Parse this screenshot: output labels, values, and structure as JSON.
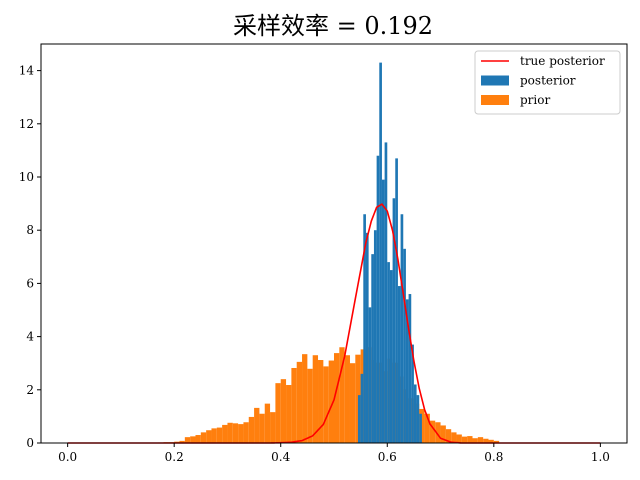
{
  "chart_data": {
    "type": "bar",
    "title": "采样效率 = 0.192",
    "xlabel": "",
    "ylabel": "",
    "xlim": [
      -0.05,
      1.05
    ],
    "ylim": [
      0,
      15
    ],
    "xticks": [
      "0.0",
      "0.2",
      "0.4",
      "0.6",
      "0.8",
      "1.0"
    ],
    "yticks": [
      "0",
      "2",
      "4",
      "6",
      "8",
      "10",
      "12",
      "14"
    ],
    "grid": false,
    "legend_position": "top-right",
    "legend": [
      "true posterior",
      "posterior",
      "prior"
    ],
    "colors": {
      "true_posterior": "#ff0000",
      "posterior": "#1f77b4",
      "prior": "#ff7f0e"
    },
    "series": [
      {
        "name": "prior",
        "kind": "histogram",
        "bin_width": 0.01,
        "bins": [
          [
            0.17,
            0.02
          ],
          [
            0.18,
            0.03
          ],
          [
            0.19,
            0.03
          ],
          [
            0.2,
            0.05
          ],
          [
            0.21,
            0.08
          ],
          [
            0.22,
            0.22
          ],
          [
            0.23,
            0.25
          ],
          [
            0.24,
            0.3
          ],
          [
            0.25,
            0.4
          ],
          [
            0.26,
            0.48
          ],
          [
            0.27,
            0.55
          ],
          [
            0.28,
            0.58
          ],
          [
            0.29,
            0.68
          ],
          [
            0.3,
            0.76
          ],
          [
            0.31,
            0.74
          ],
          [
            0.32,
            0.71
          ],
          [
            0.33,
            0.78
          ],
          [
            0.34,
            0.98
          ],
          [
            0.35,
            1.32
          ],
          [
            0.36,
            1.1
          ],
          [
            0.37,
            1.48
          ],
          [
            0.38,
            1.16
          ],
          [
            0.39,
            2.25
          ],
          [
            0.4,
            2.4
          ],
          [
            0.41,
            2.18
          ],
          [
            0.42,
            2.82
          ],
          [
            0.43,
            3.05
          ],
          [
            0.44,
            3.34
          ],
          [
            0.45,
            2.79
          ],
          [
            0.46,
            3.3
          ],
          [
            0.47,
            3.12
          ],
          [
            0.48,
            2.88
          ],
          [
            0.49,
            3.1
          ],
          [
            0.5,
            3.38
          ],
          [
            0.51,
            3.6
          ],
          [
            0.52,
            3.3
          ],
          [
            0.53,
            3.0
          ],
          [
            0.54,
            3.32
          ],
          [
            0.55,
            3.52
          ],
          [
            0.56,
            3.6
          ],
          [
            0.57,
            3.12
          ],
          [
            0.58,
            3.02
          ],
          [
            0.59,
            2.7
          ],
          [
            0.6,
            3.17
          ],
          [
            0.61,
            3.02
          ],
          [
            0.62,
            2.5
          ],
          [
            0.63,
            2.02
          ],
          [
            0.64,
            1.68
          ],
          [
            0.65,
            1.48
          ],
          [
            0.66,
            1.28
          ],
          [
            0.67,
            1.1
          ],
          [
            0.68,
            0.84
          ],
          [
            0.69,
            0.78
          ],
          [
            0.7,
            0.66
          ],
          [
            0.71,
            0.52
          ],
          [
            0.72,
            0.4
          ],
          [
            0.73,
            0.32
          ],
          [
            0.74,
            0.24
          ],
          [
            0.75,
            0.26
          ],
          [
            0.76,
            0.18
          ],
          [
            0.77,
            0.22
          ],
          [
            0.78,
            0.16
          ],
          [
            0.79,
            0.12
          ],
          [
            0.8,
            0.08
          ]
        ]
      },
      {
        "name": "posterior",
        "kind": "histogram",
        "bin_width": 0.005,
        "bins": [
          [
            0.545,
            1.8
          ],
          [
            0.55,
            2.6
          ],
          [
            0.555,
            8.6
          ],
          [
            0.56,
            7.9
          ],
          [
            0.565,
            5.1
          ],
          [
            0.57,
            7.1
          ],
          [
            0.575,
            8.0
          ],
          [
            0.58,
            10.8
          ],
          [
            0.585,
            14.3
          ],
          [
            0.59,
            9.9
          ],
          [
            0.595,
            11.3
          ],
          [
            0.6,
            6.8
          ],
          [
            0.605,
            6.5
          ],
          [
            0.61,
            9.2
          ],
          [
            0.615,
            10.7
          ],
          [
            0.62,
            5.9
          ],
          [
            0.625,
            8.6
          ],
          [
            0.63,
            7.3
          ],
          [
            0.635,
            5.4
          ],
          [
            0.64,
            5.6
          ],
          [
            0.645,
            3.7
          ],
          [
            0.65,
            2.2
          ],
          [
            0.655,
            1.8
          ],
          [
            0.66,
            1.1
          ]
        ]
      },
      {
        "name": "true posterior",
        "kind": "line",
        "x": [
          0.0,
          0.38,
          0.4,
          0.42,
          0.44,
          0.46,
          0.48,
          0.5,
          0.52,
          0.54,
          0.56,
          0.57,
          0.58,
          0.59,
          0.6,
          0.61,
          0.62,
          0.63,
          0.64,
          0.65,
          0.66,
          0.67,
          0.68,
          0.7,
          0.72,
          0.74,
          0.76,
          1.0
        ],
        "y": [
          0.0,
          0.0,
          0.01,
          0.03,
          0.09,
          0.27,
          0.7,
          1.62,
          3.26,
          5.42,
          7.55,
          8.34,
          8.86,
          8.98,
          8.72,
          7.98,
          6.9,
          5.62,
          4.3,
          3.08,
          2.05,
          1.26,
          0.72,
          0.18,
          0.03,
          0.0,
          0.0,
          0.0
        ]
      }
    ]
  }
}
